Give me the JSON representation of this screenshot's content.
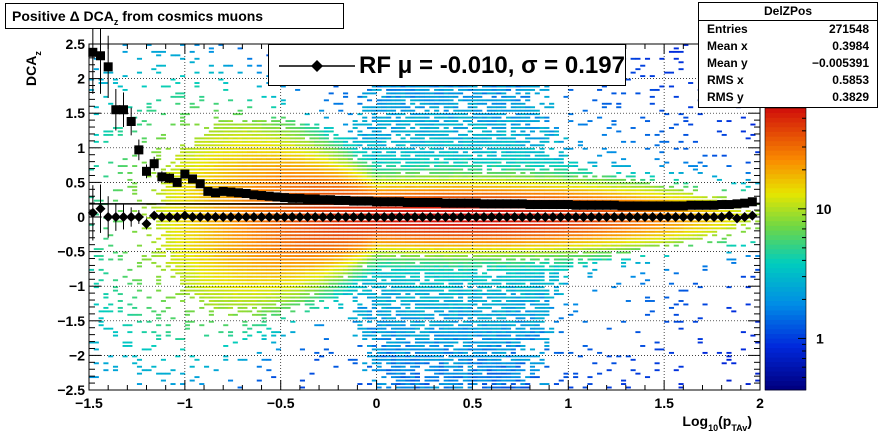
{
  "title": "Positive Δ DCA",
  "title_sub": "z",
  "title_tail": "from cosmics muons",
  "stats": {
    "name": "DelZPos",
    "rows": [
      {
        "k": "Entries",
        "v": "271548"
      },
      {
        "k": "Mean x",
        "v": "0.3984"
      },
      {
        "k": "Mean y",
        "v": "−0.005391"
      },
      {
        "k": "RMS x",
        "v": "0.5853"
      },
      {
        "k": "RMS y",
        "v": "0.3829"
      }
    ]
  },
  "legend": {
    "label": "RF μ = -0.010, σ =   0.197"
  },
  "colorbar": {
    "ticks": [
      "1",
      "10"
    ]
  },
  "chart_data": {
    "type": "heatmap",
    "xlabel": "Log",
    "xlabel_sub1": "10",
    "xlabel_mid": "(p",
    "xlabel_sub2": "TAv",
    "xlabel_end": ")",
    "ylabel": "DCA",
    "ylabel_sub": "z",
    "xlim": [
      -1.5,
      2.0
    ],
    "ylim": [
      -2.5,
      2.5
    ],
    "xticks": [
      -1.5,
      -1,
      -0.5,
      0,
      0.5,
      1,
      1.5,
      2
    ],
    "xtick_labels": [
      "−1.5",
      "−1",
      "−0.5",
      "0",
      "0.5",
      "1",
      "1.5",
      "2"
    ],
    "yticks": [
      -2.5,
      -2,
      -1.5,
      -1,
      -0.5,
      0,
      0.5,
      1,
      1.5,
      2,
      2.5
    ],
    "ytick_labels": [
      "−2.5",
      "−2",
      "−1.5",
      "−1",
      "−0.5",
      "0",
      "0.5",
      "1",
      "1.5",
      "2",
      "2.5"
    ],
    "grid": true,
    "sigma_series": {
      "x": [
        -1.48,
        -1.44,
        -1.4,
        -1.36,
        -1.32,
        -1.28,
        -1.24,
        -1.2,
        -1.16,
        -1.12,
        -1.08,
        -1.04,
        -1.0,
        -0.96,
        -0.92,
        -0.88,
        -0.84,
        -0.8,
        -0.76,
        -0.72,
        -0.68,
        -0.64,
        -0.6,
        -0.56,
        -0.52,
        -0.48,
        -0.44,
        -0.4,
        -0.36,
        -0.32,
        -0.28,
        -0.24,
        -0.2,
        -0.16,
        -0.12,
        -0.08,
        -0.04,
        0.0,
        0.04,
        0.08,
        0.12,
        0.16,
        0.2,
        0.24,
        0.28,
        0.32,
        0.36,
        0.4,
        0.44,
        0.48,
        0.52,
        0.56,
        0.6,
        0.64,
        0.68,
        0.72,
        0.76,
        0.8,
        0.84,
        0.88,
        0.92,
        0.96,
        1.0,
        1.04,
        1.08,
        1.12,
        1.16,
        1.2,
        1.24,
        1.28,
        1.32,
        1.36,
        1.4,
        1.44,
        1.48,
        1.52,
        1.56,
        1.6,
        1.64,
        1.68,
        1.72,
        1.76,
        1.8,
        1.84,
        1.88,
        1.92,
        1.96
      ],
      "y": [
        2.38,
        2.33,
        2.17,
        1.55,
        1.55,
        1.38,
        0.97,
        0.66,
        0.77,
        0.58,
        0.56,
        0.5,
        0.62,
        0.55,
        0.48,
        0.37,
        0.35,
        0.37,
        0.36,
        0.35,
        0.34,
        0.32,
        0.31,
        0.3,
        0.29,
        0.28,
        0.27,
        0.27,
        0.26,
        0.26,
        0.25,
        0.25,
        0.24,
        0.24,
        0.23,
        0.23,
        0.23,
        0.22,
        0.22,
        0.22,
        0.22,
        0.21,
        0.21,
        0.21,
        0.21,
        0.21,
        0.2,
        0.2,
        0.2,
        0.2,
        0.2,
        0.19,
        0.19,
        0.19,
        0.19,
        0.19,
        0.19,
        0.18,
        0.18,
        0.18,
        0.18,
        0.18,
        0.18,
        0.17,
        0.17,
        0.17,
        0.17,
        0.17,
        0.17,
        0.16,
        0.16,
        0.16,
        0.16,
        0.16,
        0.16,
        0.16,
        0.16,
        0.16,
        0.17,
        0.17,
        0.17,
        0.17,
        0.18,
        0.18,
        0.19,
        0.2,
        0.22
      ],
      "err": [
        0.6,
        0.55,
        0.45,
        0.3,
        0.25,
        0.2,
        0.15,
        0.1,
        0.1,
        0.08,
        0.07,
        0.06,
        0.05,
        0.05,
        0.05,
        0.04,
        0.04,
        0.03,
        0.03,
        0.03,
        0.02,
        0.02,
        0.02,
        0.02,
        0.02,
        0.02,
        0.02,
        0.02,
        0.02,
        0.02,
        0.02,
        0.02,
        0.02,
        0.02,
        0.02,
        0.02,
        0.02,
        0.02,
        0.02,
        0.02,
        0.02,
        0.02,
        0.02,
        0.02,
        0.02,
        0.02,
        0.02,
        0.02,
        0.02,
        0.02,
        0.02,
        0.02,
        0.02,
        0.02,
        0.02,
        0.02,
        0.02,
        0.02,
        0.02,
        0.02,
        0.02,
        0.02,
        0.02,
        0.02,
        0.02,
        0.02,
        0.02,
        0.02,
        0.02,
        0.02,
        0.02,
        0.02,
        0.02,
        0.02,
        0.02,
        0.02,
        0.02,
        0.02,
        0.02,
        0.02,
        0.02,
        0.02,
        0.02,
        0.02,
        0.02,
        0.02,
        0.02
      ]
    },
    "mean_series": {
      "x": [
        -1.48,
        -1.44,
        -1.4,
        -1.36,
        -1.32,
        -1.28,
        -1.24,
        -1.2,
        -1.16,
        -1.12,
        -1.08,
        -1.04,
        -1.0,
        -0.96,
        -0.92,
        -0.88,
        -0.84,
        -0.8,
        -0.76,
        -0.72,
        -0.68,
        -0.64,
        -0.6,
        -0.56,
        -0.52,
        -0.48,
        -0.44,
        -0.4,
        -0.36,
        -0.32,
        -0.28,
        -0.24,
        -0.2,
        -0.16,
        -0.12,
        -0.08,
        -0.04,
        0.0,
        0.04,
        0.08,
        0.12,
        0.16,
        0.2,
        0.24,
        0.28,
        0.32,
        0.36,
        0.4,
        0.44,
        0.48,
        0.52,
        0.56,
        0.6,
        0.64,
        0.68,
        0.72,
        0.76,
        0.8,
        0.84,
        0.88,
        0.92,
        0.96,
        1.0,
        1.04,
        1.08,
        1.12,
        1.16,
        1.2,
        1.24,
        1.28,
        1.32,
        1.36,
        1.4,
        1.44,
        1.48,
        1.52,
        1.56,
        1.6,
        1.64,
        1.68,
        1.72,
        1.76,
        1.8,
        1.84,
        1.88,
        1.92,
        1.96
      ],
      "y": [
        0.06,
        0.12,
        0.0,
        0.0,
        0.0,
        0.0,
        0.0,
        -0.1,
        0.02,
        0.0,
        0.0,
        0.0,
        0.02,
        0.0,
        0.0,
        0.0,
        0.0,
        0.0,
        0.0,
        0.0,
        0.0,
        0.0,
        0.0,
        0.0,
        0.0,
        0.0,
        0.0,
        0.0,
        0.0,
        0.0,
        0.0,
        0.0,
        0.0,
        0.0,
        0.0,
        0.0,
        0.0,
        0.0,
        0.0,
        0.0,
        0.0,
        0.0,
        0.0,
        0.0,
        0.0,
        0.0,
        0.0,
        0.0,
        0.0,
        0.0,
        0.0,
        0.0,
        0.0,
        0.0,
        0.0,
        0.0,
        0.0,
        0.0,
        0.0,
        0.0,
        0.0,
        0.0,
        0.0,
        0.0,
        0.0,
        0.0,
        0.0,
        0.0,
        0.0,
        0.0,
        0.0,
        0.0,
        0.0,
        0.0,
        0.0,
        0.0,
        0.0,
        0.0,
        0.0,
        0.0,
        0.0,
        0.0,
        0.0,
        0.02,
        -0.02,
        0.0,
        0.02
      ],
      "err": [
        0.4,
        0.35,
        0.3,
        0.2,
        0.18,
        0.14,
        0.1,
        0.08,
        0.06,
        0.05,
        0.04,
        0.04,
        0.03,
        0.03,
        0.03,
        0.02,
        0.02,
        0.02,
        0.02,
        0.02,
        0.02,
        0.02,
        0.02,
        0.02,
        0.02,
        0.02,
        0.02,
        0.02,
        0.02,
        0.02,
        0.02,
        0.02,
        0.02,
        0.02,
        0.02,
        0.02,
        0.02,
        0.02,
        0.02,
        0.02,
        0.02,
        0.02,
        0.02,
        0.02,
        0.02,
        0.02,
        0.02,
        0.02,
        0.02,
        0.02,
        0.02,
        0.02,
        0.02,
        0.02,
        0.02,
        0.02,
        0.02,
        0.02,
        0.02,
        0.02,
        0.02,
        0.02,
        0.02,
        0.02,
        0.02,
        0.02,
        0.02,
        0.02,
        0.02,
        0.02,
        0.02,
        0.02,
        0.02,
        0.02,
        0.02,
        0.02,
        0.02,
        0.02,
        0.02,
        0.02,
        0.02,
        0.02,
        0.02,
        0.02,
        0.02,
        0.02,
        0.02
      ]
    },
    "fit_line_y": 0.19,
    "density": {
      "mean_x": 0.3984,
      "rms_x": 0.5853,
      "mean_y": -0.005391,
      "rms_y": 0.3829,
      "entries": 271548
    }
  }
}
